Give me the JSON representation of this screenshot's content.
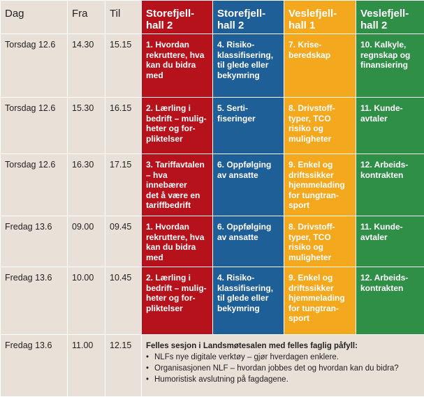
{
  "headers": {
    "day": "Dag",
    "from": "Fra",
    "to": "Til",
    "hall1": [
      "Storefjell-",
      "hall 2"
    ],
    "hall2": [
      "Storefjell-",
      "hall 2"
    ],
    "hall3": [
      "Veslefjell-",
      "hall 1"
    ],
    "hall4": [
      "Veslefjell-",
      "hall 2"
    ]
  },
  "colors": {
    "red": "#b5121b",
    "blue": "#1f5f98",
    "yellow": "#f4a81d",
    "green": "#2f8f47",
    "background": "#e9e1d8"
  },
  "rows": [
    {
      "day": "Torsdag 12.6",
      "from": "14.30",
      "to": "15.15",
      "s1": [
        "1. Hvordan",
        "rekruttere, hva",
        "kan du bidra",
        "med"
      ],
      "s2": [
        "4. Risiko-",
        "klassifisering,",
        "til glede eller",
        "bekymring"
      ],
      "s3": [
        "7. Krise-",
        "beredskap"
      ],
      "s4": [
        "10. Kalkyle,",
        "regnskap og",
        "finansiering"
      ]
    },
    {
      "day": "Torsdag 12.6",
      "from": "15.30",
      "to": "16.15",
      "s1": [
        "2. Lærling i",
        "bedrift – mulig-",
        "heter og for-",
        "pliktelser"
      ],
      "s2": [
        "5. Serti-",
        "fiseringer"
      ],
      "s3": [
        "8. Drivstoff-",
        "typer, TCO",
        "risiko og",
        "muligheter"
      ],
      "s4": [
        "11. Kunde-",
        "avtaler"
      ]
    },
    {
      "day": "Torsdag 12.6",
      "from": "16.30",
      "to": "17.15",
      "s1": [
        "3. Tariffavtalen",
        "– hva innebærer",
        "det å være en",
        "tariffbedrift"
      ],
      "s2": [
        "6. Oppfølging",
        "av ansatte"
      ],
      "s3": [
        "9. Enkel og",
        "driftssikker",
        "hjemmelading",
        "for tungtran-",
        "sport"
      ],
      "s4": [
        "12. Arbeids-",
        "kontrakten"
      ]
    },
    {
      "day": "Fredag 13.6",
      "from": "09.00",
      "to": "09.45",
      "s1": [
        "1. Hvordan",
        "rekruttere, hva",
        "kan du bidra",
        "med"
      ],
      "s2": [
        "6. Oppfølging",
        "av ansatte"
      ],
      "s3": [
        "8. Drivstoff-",
        "typer, TCO",
        "risiko og",
        "muligheter"
      ],
      "s4": [
        "11. Kunde-",
        "avtaler"
      ]
    },
    {
      "day": "Fredag 13.6",
      "from": "10.00",
      "to": "10.45",
      "s1": [
        "2. Lærling i",
        "bedrift – mulig-",
        "heter og for-",
        "pliktelser"
      ],
      "s2": [
        "4. Risiko-",
        "klassifisering,",
        "til glede eller",
        "bekymring"
      ],
      "s3": [
        "9. Enkel og",
        "driftssikker",
        "hjemmelading",
        "for tungtran-",
        "sport"
      ],
      "s4": [
        "12. Arbeids-",
        "kontrakten"
      ]
    }
  ],
  "final_row": {
    "day": "Fredag 13.6",
    "from": "11.00",
    "to": "12.15",
    "heading": "Felles sesjon i Landsmøtesalen med felles faglig påfyll:",
    "bullets": [
      "NLFs nye digitale verktøy – gjør hverdagen enklere.",
      "Organisasjonen NLF – hvordan jobbes det og hvordan kan du bidra?",
      "Humoristisk avslutning på fagdagene."
    ]
  }
}
